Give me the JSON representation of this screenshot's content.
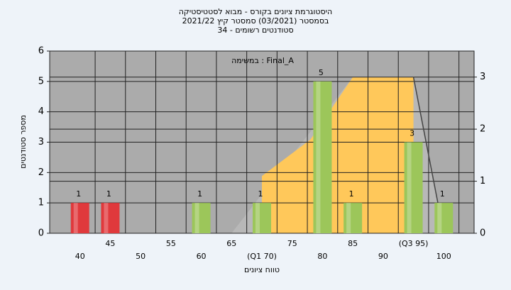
{
  "chart_data": {
    "type": "bar",
    "title": "היסטוגרמת ציונים בקורס - מבוא לסטטיסטיקה",
    "subtitle": "בסמסטר (03/2021) סמסטר קיץ 2021/22",
    "subtitle2": "סטודנטים רשומים - 34",
    "annotation": "במשימה : Final_A",
    "x_label": "טווח ציונים",
    "y_label": "מספר סטודנטים",
    "x": [
      40,
      45,
      50,
      55,
      60,
      65,
      70,
      75,
      80,
      85,
      90,
      95,
      100
    ],
    "values": [
      1,
      1,
      0,
      0,
      1,
      0,
      1,
      0,
      5,
      1,
      0,
      3,
      1
    ],
    "colors": [
      "#e0393c",
      "#e0393c",
      "#9cc65a",
      "#9cc65a",
      "#9cc65a",
      "#9cc65a",
      "#9cc65a",
      "#9cc65a",
      "#9cc65a",
      "#9cc65a",
      "#9cc65a",
      "#9cc65a",
      "#9cc65a"
    ],
    "xlim": [
      35,
      105
    ],
    "xticks": [
      40,
      45,
      50,
      55,
      60,
      65,
      {
        "value": 70,
        "label": "(Q1 70)"
      },
      75,
      80,
      85,
      90,
      {
        "value": 95,
        "label": "(Q3 95)"
      },
      100
    ],
    "ylim": [
      0,
      6
    ],
    "yticks": [
      0,
      1,
      2,
      3,
      4,
      5,
      6
    ],
    "y2lim": [
      0,
      3.5
    ],
    "y2ticks": [
      0,
      1,
      2,
      3
    ],
    "areas": [
      {
        "color": "#b8b8b8",
        "x": [
          65,
          85,
          95,
          100
        ],
        "values": [
          0,
          3,
          3,
          0
        ],
        "axis": "y2"
      },
      {
        "color": "#ffc85a",
        "x": [
          70,
          70,
          78,
          85,
          95,
          95
        ],
        "values": [
          0,
          1.1,
          1.8,
          3,
          3,
          0
        ],
        "axis": "y2"
      }
    ],
    "line": {
      "color": "#444444",
      "x": [
        95,
        100
      ],
      "values": [
        3,
        0
      ],
      "axis": "y2"
    },
    "grid": true
  }
}
